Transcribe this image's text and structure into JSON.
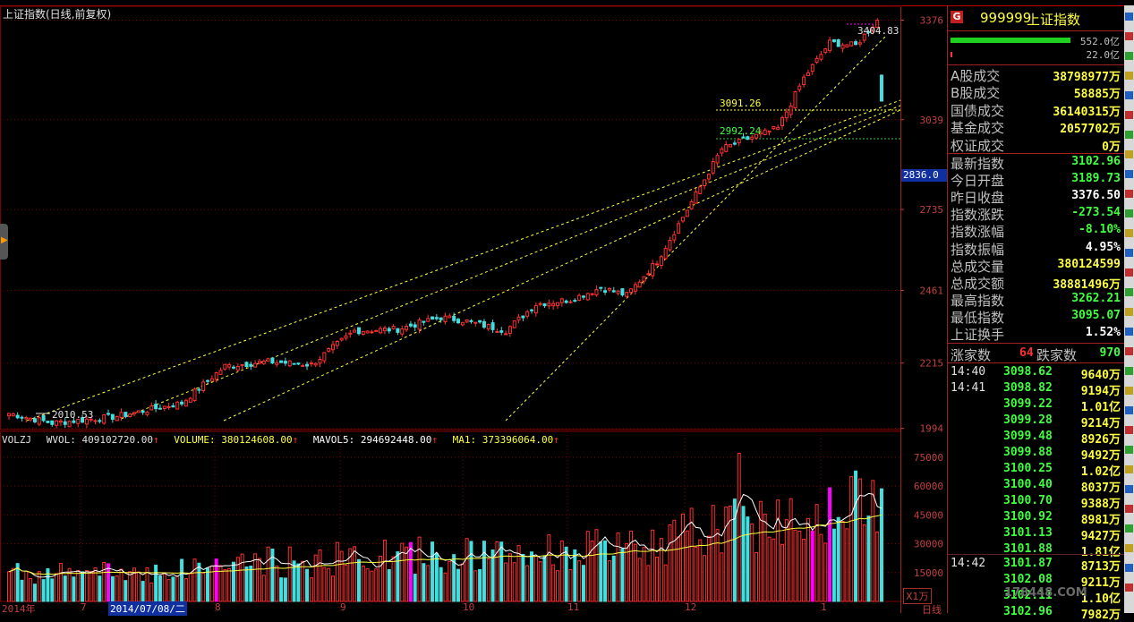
{
  "chart_title": "上证指数(日线,前复权)",
  "price_axis": {
    "ticks": [
      3376,
      3039,
      2735,
      2461,
      2215,
      1994
    ],
    "ylim": [
      1990,
      3420
    ]
  },
  "current_price_marker": "2836.0",
  "annotations": {
    "high": "3404.83",
    "mid_high": "3091.26",
    "mid_low": "2992.24",
    "low": "2010.53"
  },
  "volume_legend": {
    "volzj": "VOLZJ",
    "wvol": "WVOL: 409102720.00",
    "volume": "VOLUME: 380124608.00",
    "mavol5": "MAVOL5: 294692448.00",
    "ma1": "MA1: 373396064.00"
  },
  "volume_axis": {
    "ticks": [
      "75000",
      "60000",
      "45000",
      "30000",
      "15000"
    ],
    "unit": "X1万"
  },
  "x_axis": {
    "labels": [
      "2014年",
      "7",
      "2014/07/08/二",
      "8",
      "9",
      "10",
      "11",
      "12",
      "1"
    ]
  },
  "daily_tab": "日线",
  "panel": {
    "g_badge": "G",
    "code": "999999",
    "name": "上证指数",
    "flow_in": "552.0亿",
    "flow_out": "22.0亿",
    "stats_a": [
      {
        "label": "A股成交",
        "value": "38798977万",
        "color": "#ffff40"
      },
      {
        "label": "B股成交",
        "value": "58885万",
        "color": "#ffff40"
      },
      {
        "label": "国债成交",
        "value": "36140315万",
        "color": "#ffff40"
      },
      {
        "label": "基金成交",
        "value": "2057702万",
        "color": "#ffff40"
      },
      {
        "label": "权证成交",
        "value": "0万",
        "color": "#ffff40"
      }
    ],
    "stats_b": [
      {
        "label": "最新指数",
        "value": "3102.96",
        "color": "#40ff40"
      },
      {
        "label": "今日开盘",
        "value": "3189.73",
        "color": "#40ff40"
      },
      {
        "label": "昨日收盘",
        "value": "3376.50",
        "color": "#ffffff"
      },
      {
        "label": "指数涨跌",
        "value": "-273.54",
        "color": "#40ff40"
      },
      {
        "label": "指数涨幅",
        "value": "-8.10%",
        "color": "#40ff40"
      },
      {
        "label": "指数振幅",
        "value": "4.95%",
        "color": "#ffffff"
      },
      {
        "label": "总成交量",
        "value": "380124599",
        "color": "#ffff40"
      },
      {
        "label": "总成交额",
        "value": "38881496万",
        "color": "#ffff40"
      },
      {
        "label": "最高指数",
        "value": "3262.21",
        "color": "#40ff40"
      },
      {
        "label": "最低指数",
        "value": "3095.07",
        "color": "#40ff40"
      },
      {
        "label": "上证换手",
        "value": "1.52%",
        "color": "#ffffff"
      }
    ],
    "advance_label": "涨家数",
    "advance_count": "64",
    "decline_label": "跌家数",
    "decline_count": "970",
    "ticks": [
      {
        "time": "14:40",
        "price": "3098.62",
        "vol": "9640万"
      },
      {
        "time": "14:41",
        "price": "3098.82",
        "vol": "9194万"
      },
      {
        "time": "",
        "price": "3099.22",
        "vol": "1.01亿"
      },
      {
        "time": "",
        "price": "3099.28",
        "vol": "9214万"
      },
      {
        "time": "",
        "price": "3099.48",
        "vol": "8926万"
      },
      {
        "time": "",
        "price": "3099.88",
        "vol": "9492万"
      },
      {
        "time": "",
        "price": "3100.25",
        "vol": "1.02亿"
      },
      {
        "time": "",
        "price": "3100.40",
        "vol": "8037万"
      },
      {
        "time": "",
        "price": "3100.70",
        "vol": "9388万"
      },
      {
        "time": "",
        "price": "3100.92",
        "vol": "8981万"
      },
      {
        "time": "",
        "price": "3101.13",
        "vol": "9427万"
      },
      {
        "time": "",
        "price": "3101.88",
        "vol": "1.81亿"
      },
      {
        "time": "14:42",
        "price": "3101.87",
        "vol": "8713万"
      },
      {
        "time": "",
        "price": "3102.08",
        "vol": "9211万"
      },
      {
        "time": "",
        "price": "3102.11",
        "vol": "1.10亿"
      },
      {
        "time": "",
        "price": "3102.96",
        "vol": "7982万"
      }
    ]
  },
  "watermark": "178448.COM",
  "colors": {
    "up": "#ff3030",
    "down": "#40e0e0",
    "grid": "#800000",
    "special": "#ff00ff",
    "trend": "#ffff40"
  },
  "chart_data": {
    "type": "candlestick",
    "title": "上证指数(日线,前复权)",
    "ylim": [
      1990,
      3420
    ],
    "volume_ylim": [
      0,
      80000
    ],
    "anchors": [
      {
        "i": 0,
        "p": 2045
      },
      {
        "i": 10,
        "p": 2012
      },
      {
        "i": 25,
        "p": 2035
      },
      {
        "i": 40,
        "p": 2080
      },
      {
        "i": 50,
        "p": 2205
      },
      {
        "i": 60,
        "p": 2220
      },
      {
        "i": 70,
        "p": 2210
      },
      {
        "i": 80,
        "p": 2325
      },
      {
        "i": 90,
        "p": 2330
      },
      {
        "i": 100,
        "p": 2370
      },
      {
        "i": 105,
        "p": 2360
      },
      {
        "i": 115,
        "p": 2325
      },
      {
        "i": 122,
        "p": 2415
      },
      {
        "i": 130,
        "p": 2430
      },
      {
        "i": 137,
        "p": 2470
      },
      {
        "i": 143,
        "p": 2445
      },
      {
        "i": 150,
        "p": 2560
      },
      {
        "i": 158,
        "p": 2760
      },
      {
        "i": 165,
        "p": 2940
      },
      {
        "i": 172,
        "p": 2980
      },
      {
        "i": 178,
        "p": 3010
      },
      {
        "i": 184,
        "p": 3180
      },
      {
        "i": 190,
        "p": 3300
      },
      {
        "i": 196,
        "p": 3290
      },
      {
        "i": 201,
        "p": 3376
      },
      {
        "i": 202,
        "p": 3190
      }
    ]
  }
}
